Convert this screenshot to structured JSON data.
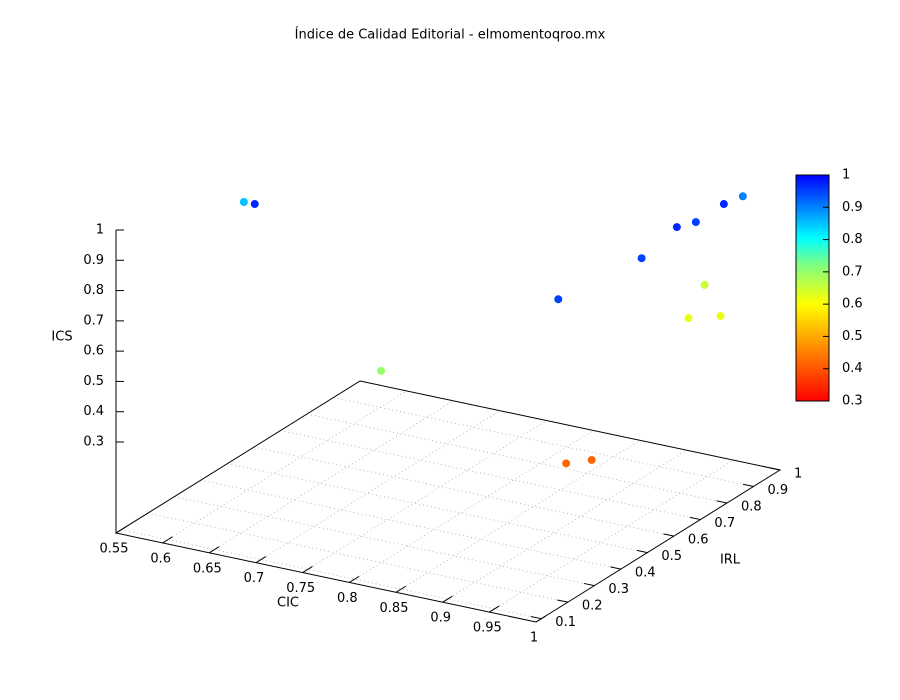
{
  "chart_data": {
    "type": "scatter3d",
    "title": "Índice de Calidad Editorial - elmomentoqroo.mx",
    "x_label": "CIC",
    "y_label": "IRL",
    "z_label": "ICS",
    "xlim": [
      0.55,
      1
    ],
    "ylim": [
      0.08,
      1
    ],
    "zlim": [
      0.3,
      1
    ],
    "cblim": [
      0.3,
      1
    ],
    "xticks": [
      0.55,
      0.6,
      0.65,
      0.7,
      0.75,
      0.8,
      0.85,
      0.9,
      0.95,
      1
    ],
    "yticks": [
      0.1,
      0.2,
      0.3,
      0.4,
      0.5,
      0.6,
      0.7,
      0.8,
      0.9,
      1
    ],
    "zticks": [
      0.3,
      0.4,
      0.5,
      0.6,
      0.7,
      0.8,
      0.9,
      1
    ],
    "cbticks": [
      0.3,
      0.4,
      0.5,
      0.6,
      0.7,
      0.8,
      0.9,
      1
    ],
    "grid": true,
    "points": {
      "x": [
        0.558,
        0.616,
        0.826,
        0.973,
        0.987,
        0.983,
        0.984,
        0.991,
        0.969,
        0.955,
        0.973,
        0.996,
        0.984,
        1.0
      ],
      "y": [
        0.534,
        0.371,
        0.108,
        0.259,
        0.524,
        0.671,
        0.739,
        0.82,
        0.969,
        0.874,
        0.75,
        0.79,
        0.25,
        0.29
      ],
      "z": [
        0.85,
        0.97,
        0.7,
        0.95,
        0.95,
        0.97,
        0.95,
        0.97,
        0.9,
        0.65,
        0.62,
        0.62,
        0.42,
        0.42
      ]
    }
  }
}
